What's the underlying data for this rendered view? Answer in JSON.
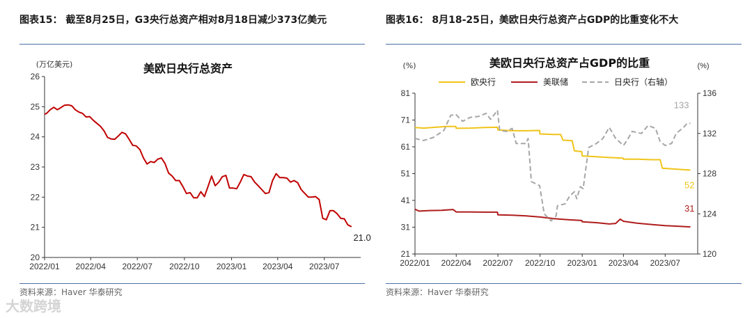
{
  "left": {
    "figure_title": "图表15：  截至8月25日，G3央行总资产相对8月18日减少373亿美元",
    "source": "资料来源：Haver 华泰研究",
    "chart_data": {
      "type": "line",
      "title": "美欧日央行总资产",
      "ylabel": "(万亿美元)",
      "ylim": [
        20,
        26
      ],
      "yticks": [
        20,
        21,
        22,
        23,
        24,
        25,
        26
      ],
      "xticks": [
        "2022/01",
        "2022/04",
        "2022/07",
        "2022/10",
        "2023/01",
        "2023/04",
        "2023/07"
      ],
      "series": [
        {
          "color": "#c00000",
          "end_label": "21.0",
          "points": [
            [
              "2022-01-01",
              24.75
            ],
            [
              "2022-01-05",
              24.78
            ],
            [
              "2022-01-12",
              24.9
            ],
            [
              "2022-01-19",
              24.98
            ],
            [
              "2022-01-26",
              24.9
            ],
            [
              "2022-02-02",
              24.97
            ],
            [
              "2022-02-09",
              25.05
            ],
            [
              "2022-02-16",
              25.06
            ],
            [
              "2022-02-23",
              25.03
            ],
            [
              "2022-03-02",
              24.9
            ],
            [
              "2022-03-09",
              24.82
            ],
            [
              "2022-03-16",
              24.78
            ],
            [
              "2022-03-23",
              24.66
            ],
            [
              "2022-03-30",
              24.67
            ],
            [
              "2022-04-06",
              24.55
            ],
            [
              "2022-04-13",
              24.45
            ],
            [
              "2022-04-20",
              24.35
            ],
            [
              "2022-04-27",
              24.2
            ],
            [
              "2022-05-04",
              23.98
            ],
            [
              "2022-05-11",
              23.93
            ],
            [
              "2022-05-18",
              23.92
            ],
            [
              "2022-05-25",
              24.03
            ],
            [
              "2022-06-01",
              24.15
            ],
            [
              "2022-06-08",
              24.1
            ],
            [
              "2022-06-15",
              23.92
            ],
            [
              "2022-06-22",
              23.72
            ],
            [
              "2022-06-29",
              23.7
            ],
            [
              "2022-07-06",
              23.58
            ],
            [
              "2022-07-13",
              23.3
            ],
            [
              "2022-07-20",
              23.1
            ],
            [
              "2022-07-27",
              23.18
            ],
            [
              "2022-08-03",
              23.15
            ],
            [
              "2022-08-10",
              23.26
            ],
            [
              "2022-08-17",
              23.3
            ],
            [
              "2022-08-24",
              23.12
            ],
            [
              "2022-08-31",
              22.8
            ],
            [
              "2022-09-07",
              22.7
            ],
            [
              "2022-09-14",
              22.55
            ],
            [
              "2022-09-21",
              22.55
            ],
            [
              "2022-09-28",
              22.35
            ],
            [
              "2022-10-05",
              22.12
            ],
            [
              "2022-10-12",
              22.15
            ],
            [
              "2022-10-19",
              21.98
            ],
            [
              "2022-10-26",
              21.98
            ],
            [
              "2022-11-02",
              22.18
            ],
            [
              "2022-11-09",
              22.02
            ],
            [
              "2022-11-16",
              22.35
            ],
            [
              "2022-11-23",
              22.7
            ],
            [
              "2022-11-30",
              22.38
            ],
            [
              "2022-12-07",
              22.5
            ],
            [
              "2022-12-14",
              22.68
            ],
            [
              "2022-12-21",
              22.72
            ],
            [
              "2022-12-28",
              22.3
            ],
            [
              "2023-01-04",
              22.3
            ],
            [
              "2023-01-11",
              22.28
            ],
            [
              "2023-01-18",
              22.5
            ],
            [
              "2023-01-25",
              22.75
            ],
            [
              "2023-02-01",
              22.7
            ],
            [
              "2023-02-08",
              22.68
            ],
            [
              "2023-02-15",
              22.5
            ],
            [
              "2023-02-22",
              22.38
            ],
            [
              "2023-03-01",
              22.25
            ],
            [
              "2023-03-08",
              22.12
            ],
            [
              "2023-03-15",
              22.15
            ],
            [
              "2023-03-22",
              22.55
            ],
            [
              "2023-03-29",
              22.78
            ],
            [
              "2023-04-05",
              22.65
            ],
            [
              "2023-04-12",
              22.65
            ],
            [
              "2023-04-19",
              22.63
            ],
            [
              "2023-04-26",
              22.5
            ],
            [
              "2023-05-03",
              22.55
            ],
            [
              "2023-05-10",
              22.48
            ],
            [
              "2023-05-17",
              22.25
            ],
            [
              "2023-05-24",
              22.12
            ],
            [
              "2023-05-31",
              22.0
            ],
            [
              "2023-06-07",
              22.0
            ],
            [
              "2023-06-14",
              22.02
            ],
            [
              "2023-06-21",
              21.92
            ],
            [
              "2023-06-28",
              21.3
            ],
            [
              "2023-07-05",
              21.25
            ],
            [
              "2023-07-12",
              21.55
            ],
            [
              "2023-07-19",
              21.55
            ],
            [
              "2023-07-26",
              21.45
            ],
            [
              "2023-08-02",
              21.3
            ],
            [
              "2023-08-09",
              21.28
            ],
            [
              "2023-08-16",
              21.08
            ],
            [
              "2023-08-23",
              21.02
            ]
          ]
        }
      ]
    }
  },
  "right": {
    "figure_title": "图表16：  8月18-25日，美欧日央行总资产占GDP的比重变化不大",
    "source": "资料来源：Haver 华泰研究",
    "chart_data": {
      "type": "line",
      "title": "美欧日央行总资产占GDP的比重",
      "ylabel": "(%)",
      "ylabel_right": "(%)",
      "ylim": [
        21,
        81
      ],
      "yticks": [
        21,
        31,
        41,
        51,
        61,
        71,
        81
      ],
      "ylim_right": [
        120,
        136
      ],
      "yticks_right": [
        120,
        124,
        128,
        132,
        136
      ],
      "xticks": [
        "2022/01",
        "2022/04",
        "2022/07",
        "2022/10",
        "2023/01",
        "2023/04",
        "2023/07"
      ],
      "series": [
        {
          "name": "欧央行",
          "color": "#f0c419",
          "dash": false,
          "axis": "left",
          "end_label": "52",
          "points": [
            [
              "2022-01-01",
              68.2
            ],
            [
              "2022-01-20",
              68.0
            ],
            [
              "2022-02-15",
              68.3
            ],
            [
              "2022-03-10",
              68.6
            ],
            [
              "2022-03-31",
              68.6
            ],
            [
              "2022-04-01",
              67.9
            ],
            [
              "2022-05-01",
              68.0
            ],
            [
              "2022-06-01",
              68.2
            ],
            [
              "2022-06-30",
              68.3
            ],
            [
              "2022-07-01",
              67.3
            ],
            [
              "2022-08-01",
              67.0
            ],
            [
              "2022-09-01",
              67.0
            ],
            [
              "2022-09-30",
              67.1
            ],
            [
              "2022-10-01",
              65.8
            ],
            [
              "2022-11-01",
              65.6
            ],
            [
              "2022-11-15",
              65.6
            ],
            [
              "2022-11-20",
              63.5
            ],
            [
              "2022-12-10",
              63.3
            ],
            [
              "2022-12-15",
              59.5
            ],
            [
              "2022-12-31",
              59.2
            ],
            [
              "2023-01-01",
              57.6
            ],
            [
              "2023-02-01",
              57.3
            ],
            [
              "2023-03-01",
              57.0
            ],
            [
              "2023-03-31",
              56.8
            ],
            [
              "2023-04-01",
              56.4
            ],
            [
              "2023-05-01",
              56.4
            ],
            [
              "2023-06-01",
              56.2
            ],
            [
              "2023-06-20",
              56.2
            ],
            [
              "2023-06-25",
              53.0
            ],
            [
              "2023-07-15",
              52.8
            ],
            [
              "2023-08-25",
              52.3
            ]
          ]
        },
        {
          "name": "美联储",
          "color": "#b01c1c",
          "dash": false,
          "axis": "left",
          "end_label": "31",
          "points": [
            [
              "2022-01-01",
              37.7
            ],
            [
              "2022-01-10",
              37.0
            ],
            [
              "2022-02-01",
              37.2
            ],
            [
              "2022-03-01",
              37.3
            ],
            [
              "2022-03-25",
              37.6
            ],
            [
              "2022-04-01",
              36.7
            ],
            [
              "2022-05-01",
              36.7
            ],
            [
              "2022-06-01",
              36.6
            ],
            [
              "2022-06-30",
              36.6
            ],
            [
              "2022-07-01",
              35.6
            ],
            [
              "2022-08-01",
              35.5
            ],
            [
              "2022-09-01",
              35.2
            ],
            [
              "2022-10-01",
              34.8
            ],
            [
              "2022-11-01",
              34.2
            ],
            [
              "2022-12-01",
              33.8
            ],
            [
              "2022-12-31",
              33.5
            ],
            [
              "2023-01-01",
              33.0
            ],
            [
              "2023-02-01",
              32.7
            ],
            [
              "2023-03-01",
              32.2
            ],
            [
              "2023-03-15",
              32.4
            ],
            [
              "2023-03-25",
              34.0
            ],
            [
              "2023-04-01",
              33.2
            ],
            [
              "2023-05-01",
              32.5
            ],
            [
              "2023-06-01",
              32.0
            ],
            [
              "2023-07-01",
              31.6
            ],
            [
              "2023-08-01",
              31.3
            ],
            [
              "2023-08-25",
              31.1
            ]
          ]
        },
        {
          "name": "日央行（右轴）",
          "color": "#a6a6a6",
          "dash": true,
          "axis": "right",
          "end_label": "133",
          "points": [
            [
              "2022-01-01",
              131.5
            ],
            [
              "2022-01-20",
              131.3
            ],
            [
              "2022-02-10",
              131.6
            ],
            [
              "2022-03-05",
              132.3
            ],
            [
              "2022-03-20",
              133.8
            ],
            [
              "2022-03-31",
              133.9
            ],
            [
              "2022-04-15",
              133.2
            ],
            [
              "2022-05-01",
              133.6
            ],
            [
              "2022-05-20",
              133.7
            ],
            [
              "2022-06-05",
              134.0
            ],
            [
              "2022-06-15",
              133.4
            ],
            [
              "2022-06-30",
              134.3
            ],
            [
              "2022-07-05",
              132.3
            ],
            [
              "2022-07-20",
              132.2
            ],
            [
              "2022-08-01",
              132.5
            ],
            [
              "2022-08-10",
              131.0
            ],
            [
              "2022-08-31",
              131.0
            ],
            [
              "2022-09-05",
              131.5
            ],
            [
              "2022-09-12",
              127.2
            ],
            [
              "2022-09-30",
              126.8
            ],
            [
              "2022-10-10",
              124.0
            ],
            [
              "2022-10-25",
              123.3
            ],
            [
              "2022-11-05",
              123.8
            ],
            [
              "2022-11-08",
              124.8
            ],
            [
              "2022-11-25",
              125.0
            ],
            [
              "2022-12-05",
              125.8
            ],
            [
              "2022-12-15",
              126.2
            ],
            [
              "2022-12-20",
              125.5
            ],
            [
              "2022-12-28",
              126.7
            ],
            [
              "2023-01-03",
              126.5
            ],
            [
              "2023-01-15",
              130.6
            ],
            [
              "2023-02-01",
              131.0
            ],
            [
              "2023-02-15",
              131.5
            ],
            [
              "2023-03-01",
              132.6
            ],
            [
              "2023-03-15",
              131.5
            ],
            [
              "2023-04-01",
              130.8
            ],
            [
              "2023-04-10",
              131.4
            ],
            [
              "2023-04-20",
              132.2
            ],
            [
              "2023-05-10",
              132.0
            ],
            [
              "2023-05-25",
              132.8
            ],
            [
              "2023-06-10",
              132.5
            ],
            [
              "2023-06-20",
              131.2
            ],
            [
              "2023-07-01",
              130.8
            ],
            [
              "2023-07-15",
              131.0
            ],
            [
              "2023-07-25",
              132.0
            ],
            [
              "2023-08-10",
              132.6
            ],
            [
              "2023-08-18",
              133.0
            ],
            [
              "2023-08-25",
              133.0
            ]
          ]
        }
      ]
    }
  },
  "watermark": "大数跨境"
}
